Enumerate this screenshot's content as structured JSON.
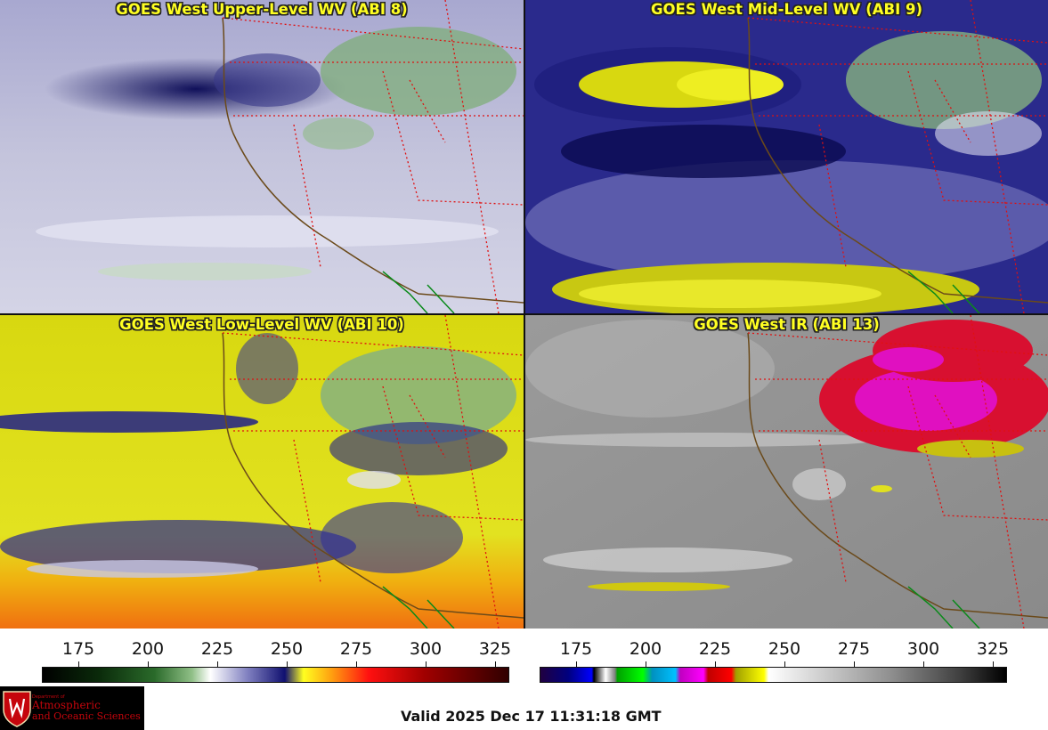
{
  "panels": [
    {
      "title": "GOES West Upper-Level WV (ABI 8)"
    },
    {
      "title": "GOES West Mid-Level WV (ABI 9)"
    },
    {
      "title": "GOES West Low-Level WV (ABI 10)"
    },
    {
      "title": "GOES West IR (ABI 13)"
    }
  ],
  "scales": {
    "wv_ticks": [
      "175",
      "200",
      "225",
      "250",
      "275",
      "300",
      "325"
    ],
    "ir_ticks": [
      "175",
      "200",
      "225",
      "250",
      "275",
      "300",
      "325"
    ]
  },
  "logo": {
    "line1": "Department of",
    "line2": "Atmospheric",
    "line3": "and Oceanic Sciences"
  },
  "footer": {
    "valid": "Valid 2025 Dec 17 11:31:18 GMT"
  },
  "colors": {
    "title_text": "#ffff22",
    "state_border": "#e01010",
    "coast": "#6b4a1a",
    "mexico_border": "#0a8a1a"
  }
}
